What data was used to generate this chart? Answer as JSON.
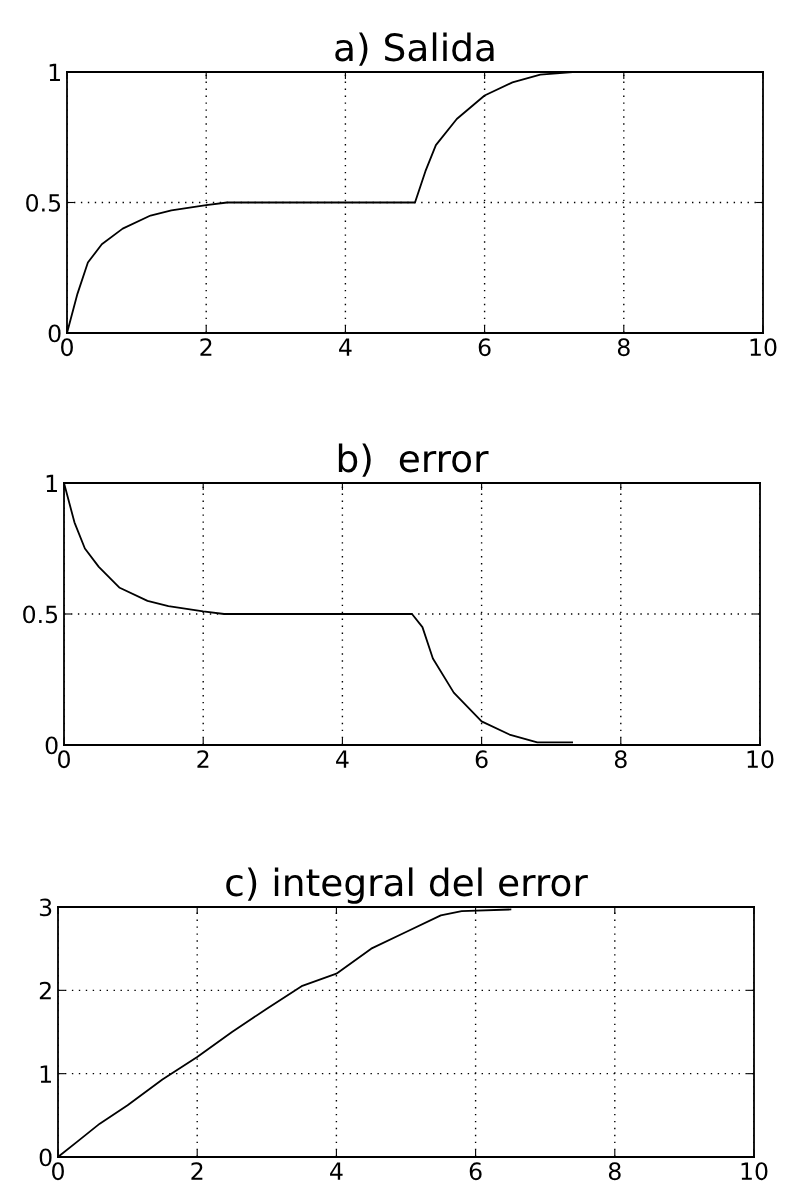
{
  "chart_data": [
    {
      "type": "line",
      "title": "a) Salida",
      "xlim": [
        0,
        10
      ],
      "ylim": [
        0,
        1
      ],
      "xticks": [
        0,
        2,
        4,
        6,
        8,
        10
      ],
      "yticks": [
        0,
        0.5,
        1
      ],
      "grid": true,
      "series": [
        {
          "color": "#000000",
          "x": [
            0,
            0.15,
            0.3,
            0.5,
            0.8,
            1.2,
            1.5,
            2,
            2.3,
            5,
            5.15,
            5.3,
            5.6,
            6,
            6.4,
            6.8,
            7.3
          ],
          "values": [
            0,
            0.15,
            0.27,
            0.34,
            0.4,
            0.45,
            0.47,
            0.49,
            0.5,
            0.5,
            0.62,
            0.72,
            0.82,
            0.91,
            0.96,
            0.99,
            1.0
          ]
        }
      ]
    },
    {
      "type": "line",
      "title": "b)  error",
      "xlim": [
        0,
        10
      ],
      "ylim": [
        0,
        1
      ],
      "xticks": [
        0,
        2,
        4,
        6,
        8,
        10
      ],
      "yticks": [
        0,
        0.5,
        1
      ],
      "grid": true,
      "series": [
        {
          "color": "#000000",
          "x": [
            0,
            0.15,
            0.3,
            0.5,
            0.8,
            1.2,
            1.5,
            2,
            2.3,
            5,
            5.15,
            5.3,
            5.6,
            6,
            6.4,
            6.8,
            7.3
          ],
          "values": [
            1,
            0.85,
            0.75,
            0.68,
            0.6,
            0.55,
            0.53,
            0.51,
            0.5,
            0.5,
            0.45,
            0.33,
            0.2,
            0.09,
            0.04,
            0.01,
            0.01
          ]
        }
      ]
    },
    {
      "type": "line",
      "title": "c) integral del error",
      "xlim": [
        0,
        10
      ],
      "ylim": [
        0,
        3
      ],
      "xticks": [
        0,
        2,
        4,
        6,
        8,
        10
      ],
      "yticks": [
        0,
        1,
        2,
        3
      ],
      "grid": true,
      "series": [
        {
          "color": "#000000",
          "x": [
            0,
            0.3,
            0.6,
            1,
            1.5,
            2,
            2.5,
            3,
            3.5,
            4,
            4.5,
            5,
            5.5,
            5.8,
            6.5
          ],
          "values": [
            0,
            0.2,
            0.4,
            0.62,
            0.93,
            1.2,
            1.5,
            1.78,
            2.05,
            2.2,
            2.5,
            2.7,
            2.9,
            2.95,
            2.97
          ]
        }
      ]
    }
  ]
}
